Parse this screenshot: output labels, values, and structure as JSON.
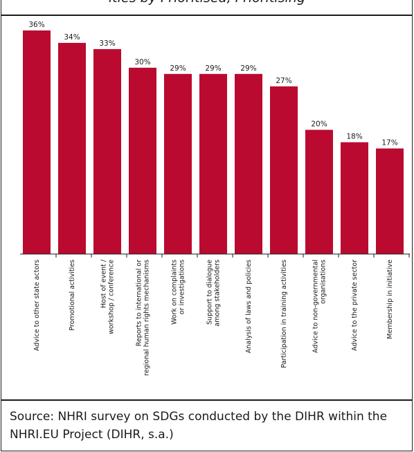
{
  "title": "ities by Prioritised, Prioritising",
  "source": "Source: NHRI survey on SDGs conducted by the DIHR within the NHRI.EU Project (DIHR, s.a.)",
  "chart_data": {
    "type": "bar",
    "orientation": "vertical",
    "bar_color": "#bb0a30",
    "ylim": [
      0,
      36
    ],
    "value_suffix": "%",
    "categories": [
      [
        "Advice to other state actors"
      ],
      [
        "Promotional activities"
      ],
      [
        "Host of event /",
        "workshop / conference"
      ],
      [
        "Reports to international or",
        "regional human rights mechanisms"
      ],
      [
        "Work on complaints",
        "or investigations"
      ],
      [
        "Support to dialogue",
        "among stakeholders"
      ],
      [
        "Analysis of laws and policies"
      ],
      [
        "Participation in training activities"
      ],
      [
        "Advice to non-governmental",
        "organisations"
      ],
      [
        "Advice to the private sector"
      ],
      [
        "Membership in initiative"
      ]
    ],
    "values": [
      36,
      34,
      33,
      30,
      29,
      29,
      29,
      27,
      20,
      18,
      17
    ],
    "data_labels": [
      "36%",
      "34%",
      "33%",
      "30%",
      "29%",
      "29%",
      "29%",
      "27%",
      "20%",
      "18%",
      "17%"
    ]
  }
}
